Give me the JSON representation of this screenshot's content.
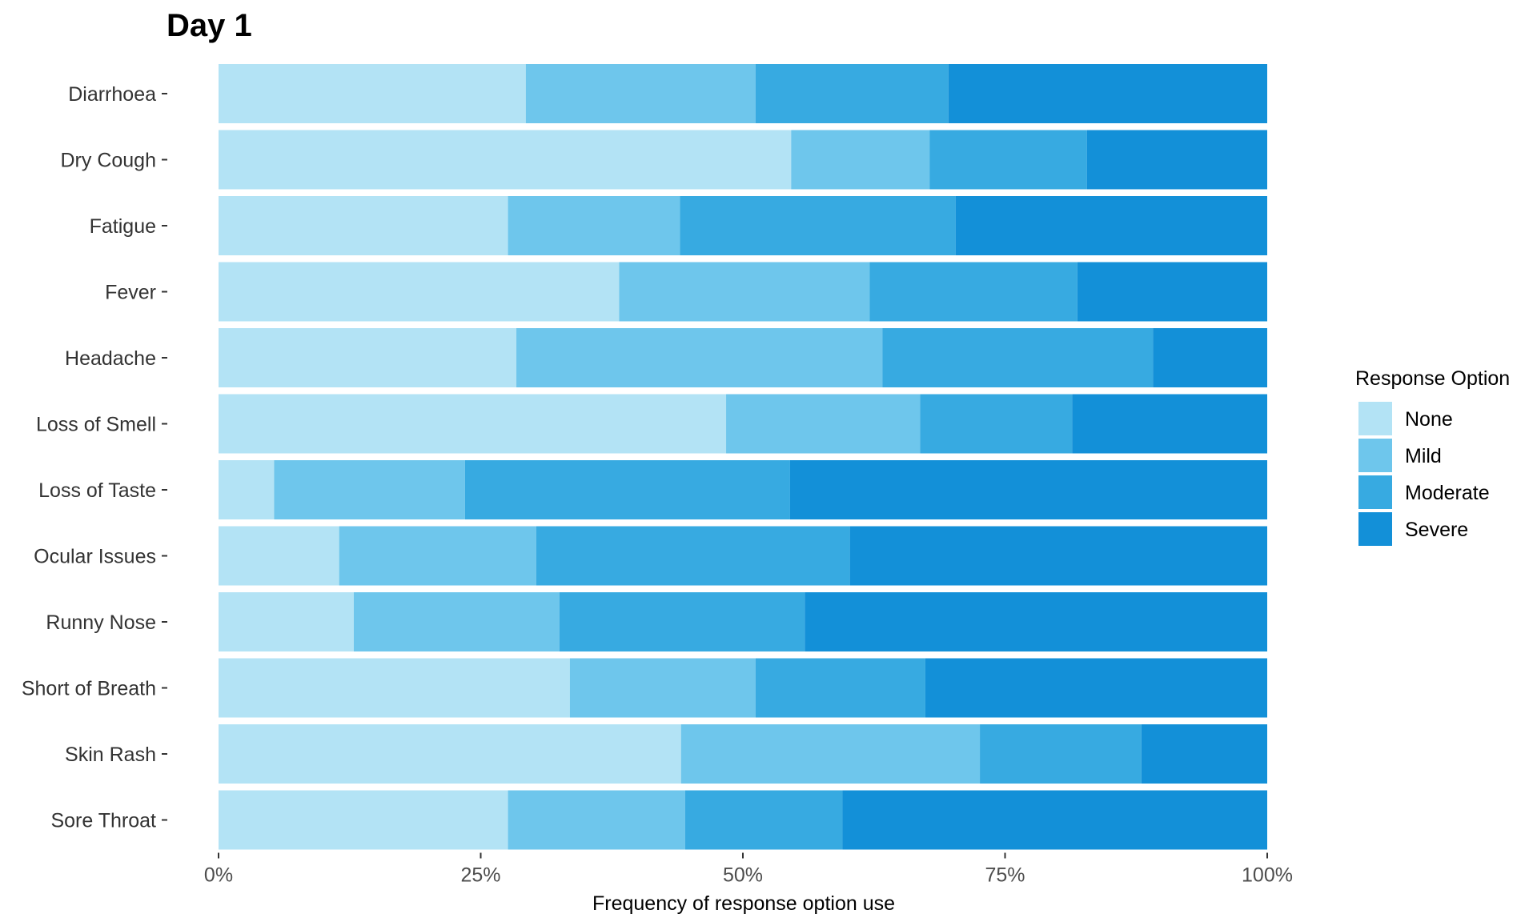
{
  "chart_data": {
    "type": "bar",
    "orientation": "horizontal",
    "stacked": true,
    "normalized": true,
    "title": "Day 1",
    "xlabel": "Frequency of response option use",
    "ylabel": "",
    "xlim": [
      0,
      100
    ],
    "x_ticks": [
      "0%",
      "25%",
      "50%",
      "75%",
      "100%"
    ],
    "categories": [
      "Diarrhoea",
      "Dry Cough",
      "Fatigue",
      "Fever",
      "Headache",
      "Loss of Smell",
      "Loss of Taste",
      "Ocular Issues",
      "Runny Nose",
      "Short of Breath",
      "Skin Rash",
      "Sore Throat"
    ],
    "series": [
      {
        "name": "None",
        "color": "#B3E3F5",
        "values": [
          29.3,
          54.6,
          27.6,
          38.2,
          28.4,
          48.4,
          5.3,
          11.5,
          12.9,
          33.5,
          44.1,
          27.6
        ]
      },
      {
        "name": "Mild",
        "color": "#6EC6EC",
        "values": [
          21.9,
          13.2,
          16.4,
          23.9,
          34.9,
          18.5,
          18.2,
          18.8,
          19.6,
          17.7,
          28.5,
          16.9
        ]
      },
      {
        "name": "Moderate",
        "color": "#37AAE1",
        "values": [
          18.4,
          15.0,
          26.3,
          19.8,
          25.8,
          14.5,
          31.0,
          29.9,
          23.4,
          16.2,
          15.4,
          15.0
        ]
      },
      {
        "name": "Severe",
        "color": "#1390D8",
        "values": [
          30.4,
          17.2,
          29.7,
          18.1,
          10.9,
          18.6,
          45.5,
          39.8,
          44.1,
          32.6,
          12.0,
          40.5
        ]
      }
    ],
    "grid": false,
    "legend": {
      "title": "Response Option",
      "position": "right"
    }
  }
}
